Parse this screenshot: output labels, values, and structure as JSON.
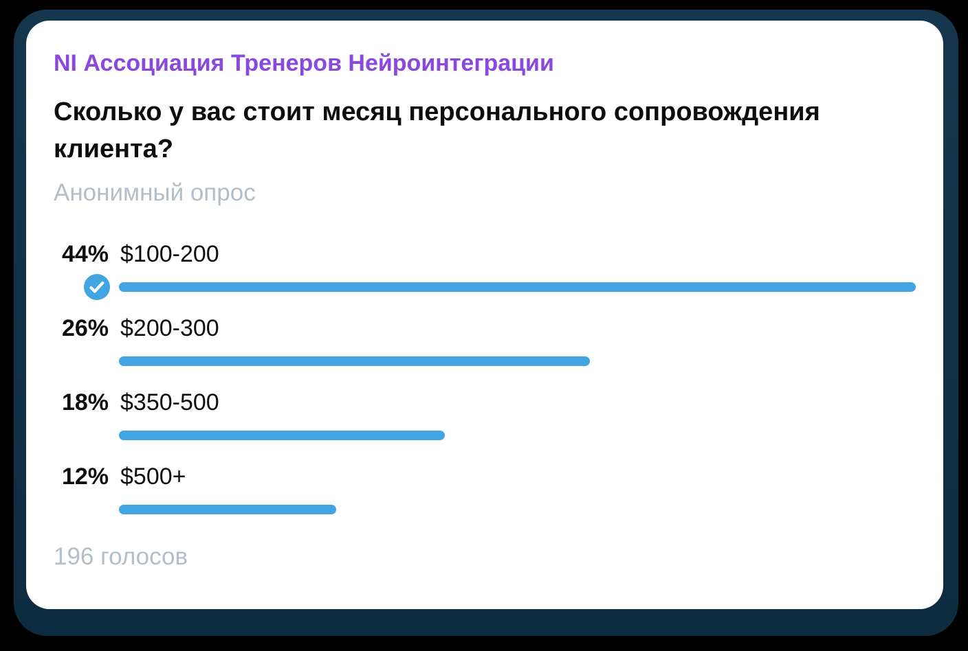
{
  "header": {
    "channel_title": "NI Ассоциация Тренеров Нейроинтеграции"
  },
  "poll": {
    "question": "Сколько у вас стоит месяц персонального сопровождения клиента?",
    "type_label": "Анонимный опрос",
    "votes_label": "196 голосов",
    "options": [
      {
        "percent": "44%",
        "value": 44,
        "label": "$100-200",
        "voted": true
      },
      {
        "percent": "26%",
        "value": 26,
        "label": "$200-300",
        "voted": false
      },
      {
        "percent": "18%",
        "value": 18,
        "label": "$350-500",
        "voted": false
      },
      {
        "percent": "12%",
        "value": 12,
        "label": "$500+",
        "voted": false
      }
    ]
  },
  "icons": {
    "voted_check": "check-circle-icon"
  },
  "colors": {
    "accent_blue": "#42a4e0",
    "channel_purple": "#8a48dd",
    "muted_gray": "#b4bec8",
    "backing_teal": "#15374d",
    "page_black": "#000000",
    "card_white": "#ffffff"
  },
  "chart_data": {
    "type": "bar",
    "orientation": "horizontal",
    "title": "Сколько у вас стоит месяц персонального сопровождения клиента?",
    "subtitle": "Анонимный опрос",
    "categories": [
      "$100-200",
      "$200-300",
      "$350-500",
      "$500+"
    ],
    "values": [
      44,
      26,
      18,
      12
    ],
    "unit": "%",
    "total_votes": 196,
    "voted_option": "$100-200",
    "bar_scale_note": "bar widths proportional to value relative to max value (44% = full width)"
  }
}
